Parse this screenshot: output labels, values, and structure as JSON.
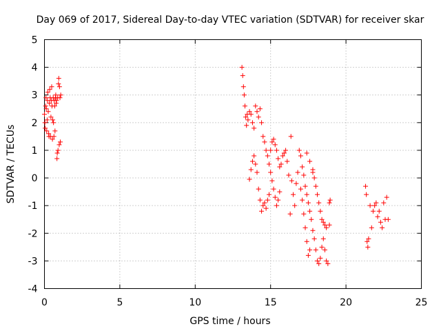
{
  "chart_data": {
    "type": "scatter",
    "title": "Day 069 of 2017, Sidereal Day-to-day VTEC variation (SDTVAR) for receiver skar",
    "xlabel": "GPS time / hours",
    "ylabel": "SDTVAR / TECUs",
    "xlim": [
      0,
      25
    ],
    "ylim": [
      -4,
      5
    ],
    "xticks": [
      0,
      5,
      10,
      15,
      20,
      25
    ],
    "yticks": [
      -4,
      -3,
      -2,
      -1,
      0,
      1,
      2,
      3,
      4,
      5
    ],
    "xtick_labels": [
      "0",
      "5",
      "10",
      "15",
      "20",
      "25"
    ],
    "ytick_labels": [
      "-4",
      "-3",
      "-2",
      "-1",
      "0",
      "1",
      "2",
      "3",
      "4",
      "5"
    ],
    "grid": true,
    "marker": "+",
    "color": "#ff0000",
    "series": [
      {
        "points": [
          [
            0.0,
            2.3
          ],
          [
            0.03,
            2.0
          ],
          [
            0.05,
            1.8
          ],
          [
            0.08,
            2.6
          ],
          [
            0.1,
            2.9
          ],
          [
            0.12,
            2.5
          ],
          [
            0.15,
            1.7
          ],
          [
            0.18,
            2.1
          ],
          [
            0.2,
            2.8
          ],
          [
            0.22,
            3.1
          ],
          [
            0.25,
            2.4
          ],
          [
            0.28,
            1.6
          ],
          [
            0.3,
            1.5
          ],
          [
            0.33,
            2.7
          ],
          [
            0.35,
            3.2
          ],
          [
            0.38,
            2.9
          ],
          [
            0.4,
            1.5
          ],
          [
            0.43,
            2.2
          ],
          [
            0.45,
            2.8
          ],
          [
            0.48,
            3.3
          ],
          [
            0.5,
            2.6
          ],
          [
            0.53,
            1.4
          ],
          [
            0.55,
            2.1
          ],
          [
            0.58,
            2.9
          ],
          [
            0.6,
            2.0
          ],
          [
            0.63,
            1.5
          ],
          [
            0.65,
            2.8
          ],
          [
            0.68,
            2.6
          ],
          [
            0.7,
            1.7
          ],
          [
            0.73,
            2.9
          ],
          [
            0.75,
            3.0
          ],
          [
            0.78,
            2.7
          ],
          [
            0.8,
            2.8
          ],
          [
            0.83,
            0.7
          ],
          [
            0.85,
            0.9
          ],
          [
            0.88,
            2.9
          ],
          [
            0.9,
            1.0
          ],
          [
            0.93,
            3.4
          ],
          [
            0.95,
            3.6
          ],
          [
            0.98,
            1.2
          ],
          [
            1.0,
            3.3
          ],
          [
            1.03,
            2.9
          ],
          [
            1.05,
            1.3
          ],
          [
            1.08,
            3.0
          ]
        ]
      },
      {
        "points": [
          [
            13.1,
            4.0
          ],
          [
            13.15,
            3.7
          ],
          [
            13.2,
            3.3
          ],
          [
            13.25,
            3.0
          ],
          [
            13.3,
            2.6
          ],
          [
            13.35,
            2.2
          ],
          [
            13.4,
            1.9
          ],
          [
            13.45,
            2.3
          ],
          [
            13.5,
            2.1
          ],
          [
            13.6,
            2.4
          ],
          [
            13.7,
            2.3
          ],
          [
            13.8,
            2.0
          ],
          [
            13.9,
            1.8
          ],
          [
            14.0,
            2.6
          ],
          [
            14.1,
            2.4
          ],
          [
            14.2,
            2.2
          ],
          [
            14.3,
            2.5
          ],
          [
            14.4,
            2.0
          ],
          [
            14.5,
            1.5
          ],
          [
            14.6,
            1.3
          ],
          [
            14.7,
            1.0
          ],
          [
            14.8,
            0.8
          ],
          [
            14.9,
            0.5
          ],
          [
            15.0,
            0.2
          ],
          [
            15.1,
            -0.1
          ],
          [
            15.2,
            -0.4
          ],
          [
            15.3,
            -0.7
          ],
          [
            15.4,
            -1.0
          ],
          [
            15.5,
            -0.8
          ],
          [
            15.6,
            -0.5
          ],
          [
            13.6,
            -0.05
          ],
          [
            13.7,
            0.3
          ],
          [
            13.8,
            0.6
          ],
          [
            13.9,
            0.8
          ],
          [
            14.0,
            0.5
          ],
          [
            14.1,
            0.2
          ],
          [
            14.2,
            -0.4
          ],
          [
            14.3,
            -0.8
          ],
          [
            14.4,
            -1.2
          ],
          [
            14.5,
            -1.0
          ],
          [
            14.6,
            -0.9
          ],
          [
            14.7,
            -1.1
          ],
          [
            14.8,
            -0.8
          ],
          [
            14.9,
            -0.6
          ],
          [
            15.0,
            1.0
          ],
          [
            15.1,
            1.3
          ],
          [
            15.2,
            1.4
          ],
          [
            15.3,
            1.2
          ],
          [
            15.4,
            1.0
          ],
          [
            15.5,
            0.7
          ],
          [
            15.6,
            0.4
          ],
          [
            15.7,
            0.5
          ],
          [
            15.8,
            0.8
          ],
          [
            15.9,
            0.9
          ],
          [
            16.0,
            1.0
          ],
          [
            16.1,
            0.6
          ],
          [
            16.2,
            0.1
          ],
          [
            16.3,
            -1.3
          ],
          [
            16.35,
            1.5
          ],
          [
            16.4,
            -0.1
          ],
          [
            16.5,
            -0.6
          ],
          [
            16.6,
            -1.0
          ],
          [
            16.7,
            -0.2
          ],
          [
            16.8,
            0.2
          ],
          [
            16.9,
            1.0
          ],
          [
            17.0,
            -0.4
          ],
          [
            17.1,
            -0.8
          ],
          [
            17.2,
            -1.3
          ],
          [
            17.3,
            -1.8
          ],
          [
            17.4,
            -2.3
          ],
          [
            17.5,
            -2.8
          ],
          [
            17.6,
            -2.6
          ],
          [
            17.0,
            0.8
          ],
          [
            17.1,
            0.4
          ],
          [
            17.2,
            0.1
          ],
          [
            17.3,
            -0.3
          ],
          [
            17.4,
            -0.6
          ],
          [
            17.5,
            -0.9
          ],
          [
            17.6,
            -1.2
          ],
          [
            17.7,
            -1.5
          ],
          [
            17.8,
            -1.9
          ],
          [
            17.9,
            -2.2
          ],
          [
            18.0,
            -2.6
          ],
          [
            18.1,
            -3.0
          ],
          [
            18.2,
            -3.1
          ],
          [
            18.3,
            -2.9
          ],
          [
            18.4,
            -2.5
          ],
          [
            18.5,
            -2.2
          ],
          [
            18.6,
            -2.6
          ],
          [
            18.7,
            -3.0
          ],
          [
            18.8,
            -3.1
          ],
          [
            18.9,
            -1.7
          ],
          [
            18.95,
            -0.8
          ],
          [
            18.9,
            -0.9
          ],
          [
            17.8,
            0.3
          ],
          [
            17.9,
            0.0
          ],
          [
            18.0,
            -0.3
          ],
          [
            18.1,
            -0.6
          ],
          [
            18.2,
            -0.9
          ],
          [
            18.3,
            -1.2
          ],
          [
            18.4,
            -1.5
          ],
          [
            18.5,
            -1.6
          ],
          [
            18.6,
            -1.7
          ],
          [
            18.7,
            -1.8
          ],
          [
            17.4,
            0.9
          ],
          [
            17.6,
            0.6
          ],
          [
            17.8,
            0.2
          ]
        ]
      },
      {
        "points": [
          [
            21.3,
            -0.3
          ],
          [
            21.35,
            -0.6
          ],
          [
            21.4,
            -2.3
          ],
          [
            21.45,
            -2.5
          ],
          [
            21.5,
            -2.2
          ],
          [
            21.6,
            -1.0
          ],
          [
            21.7,
            -1.8
          ],
          [
            21.8,
            -1.2
          ],
          [
            21.9,
            -1.0
          ],
          [
            22.0,
            -0.9
          ],
          [
            22.1,
            -1.4
          ],
          [
            22.2,
            -1.2
          ],
          [
            22.3,
            -1.6
          ],
          [
            22.4,
            -1.8
          ],
          [
            22.5,
            -0.9
          ],
          [
            22.6,
            -1.5
          ],
          [
            22.7,
            -0.7
          ],
          [
            22.8,
            -1.5
          ]
        ]
      }
    ]
  }
}
